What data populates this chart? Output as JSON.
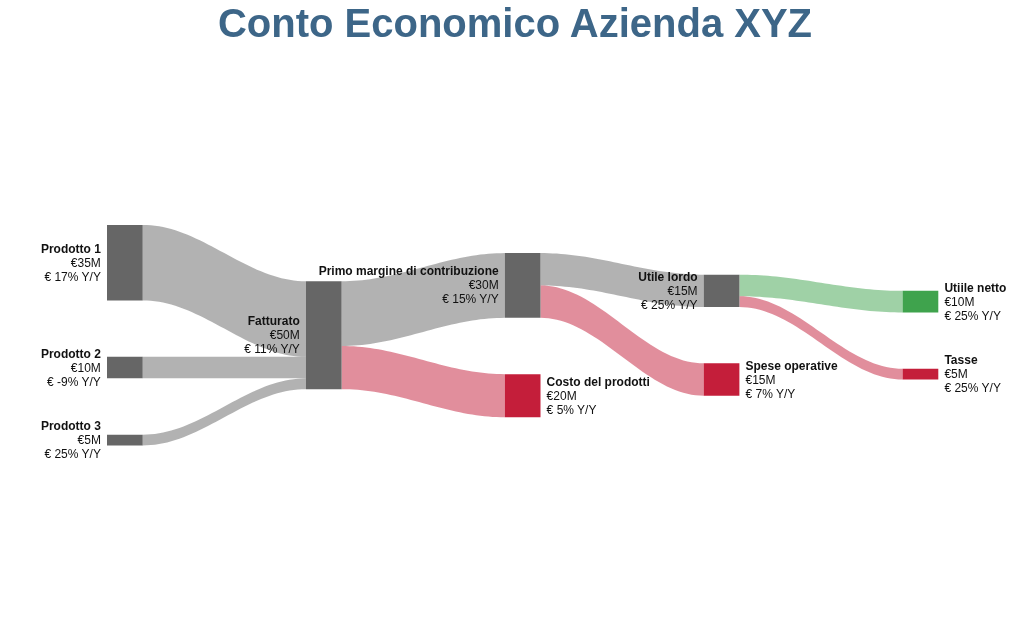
{
  "chart_data": {
    "type": "other",
    "title": "Conto Economico Azienda XYZ",
    "categories": [
      "Prodotto 1",
      "Prodotto 2",
      "Prodotto 3",
      "Fatturato",
      "Primo margine di contribuzione",
      "Costo del prodotti",
      "Utile lordo",
      "Spese operative",
      "Utiile netto",
      "Tasse"
    ],
    "values": [
      35,
      10,
      5,
      50,
      30,
      20,
      15,
      15,
      10,
      5
    ],
    "colors": [
      "#666666",
      "#666666",
      "#666666",
      "#666666",
      "#666666",
      "#c41e3a",
      "#666666",
      "#c41e3a",
      "#3fa34d",
      "#c41e3a"
    ],
    "value_labels": [
      "€35M",
      "€10M",
      "€5M",
      "€50M",
      "€30M",
      "€20M",
      "€15M",
      "€15M",
      "€10M",
      "€5M"
    ],
    "annotations": [
      "€ 17% Y/Y",
      "€ -9% Y/Y",
      "€ 25% Y/Y",
      "€ 11% Y/Y",
      "€ 15% Y/Y",
      "€ 5% Y/Y",
      "€ 25% Y/Y",
      "€ 7% Y/Y",
      "€ 25% Y/Y",
      "€ 25% Y/Y"
    ]
  }
}
